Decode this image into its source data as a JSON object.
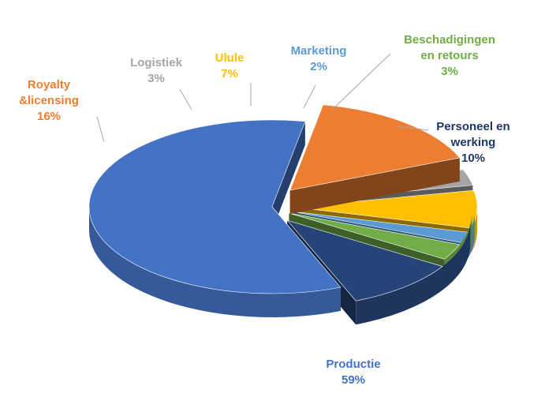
{
  "chart_data": {
    "type": "pie",
    "title": "",
    "legend": "none",
    "slices": [
      {
        "name": "Productie",
        "value": 59,
        "label": "Productie",
        "pct": "59%",
        "color": "#4472C4"
      },
      {
        "name": "Royalty &licensing",
        "value": 16,
        "label": "Royalty\n&licensing",
        "pct": "16%",
        "color": "#ED7D31"
      },
      {
        "name": "Logistiek",
        "value": 3,
        "label": "Logistiek",
        "pct": "3%",
        "color": "#A5A5A5"
      },
      {
        "name": "Ulule",
        "value": 7,
        "label": "Ulule",
        "pct": "7%",
        "color": "#FFC000"
      },
      {
        "name": "Marketing",
        "value": 2,
        "label": "Marketing",
        "pct": "2%",
        "color": "#5B9BD5"
      },
      {
        "name": "Beschadigingen en retours",
        "value": 3,
        "label": "Beschadigingen\nen retours",
        "pct": "3%",
        "color": "#70AD47"
      },
      {
        "name": "Personeel en werking",
        "value": 10,
        "label": "Personeel en\nwerking",
        "pct": "10%",
        "color": "#264478"
      }
    ]
  }
}
